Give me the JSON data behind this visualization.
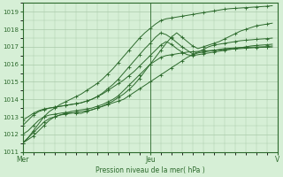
{
  "xlabel": "Pression niveau de la mer( hPa )",
  "bg_color": "#d6efd6",
  "plot_bg_color": "#d6efd6",
  "line_color": "#2d6a2d",
  "grid_color": "#aacaaa",
  "spine_color": "#2d6a2d",
  "xlim": [
    0,
    48
  ],
  "ylim": [
    1011,
    1019.5
  ],
  "yticks": [
    1011,
    1012,
    1013,
    1014,
    1015,
    1016,
    1017,
    1018,
    1019
  ],
  "xtick_labels": [
    "Mer",
    "Jeu",
    "V"
  ],
  "xtick_positions": [
    0,
    24,
    48
  ],
  "vline_x": 24,
  "series": [
    {
      "x": [
        0,
        1,
        2,
        3,
        4,
        5,
        6,
        7,
        8,
        9,
        10,
        11,
        12,
        13,
        14,
        15,
        16,
        17,
        18,
        19,
        20,
        21,
        22,
        23,
        24,
        25,
        26,
        27,
        28,
        29,
        30,
        31,
        32,
        33,
        34,
        35,
        36,
        37,
        38,
        39,
        40,
        41,
        42,
        43,
        44,
        45,
        46,
        47
      ],
      "y": [
        1011.5,
        1011.7,
        1011.9,
        1012.2,
        1012.5,
        1012.8,
        1013.0,
        1013.1,
        1013.2,
        1013.3,
        1013.35,
        1013.4,
        1013.45,
        1013.5,
        1013.6,
        1013.7,
        1013.85,
        1014.0,
        1014.2,
        1014.5,
        1014.8,
        1015.1,
        1015.4,
        1015.7,
        1016.0,
        1016.2,
        1016.4,
        1016.5,
        1016.55,
        1016.6,
        1016.65,
        1016.7,
        1016.72,
        1016.74,
        1016.76,
        1016.78,
        1016.8,
        1016.82,
        1016.84,
        1016.86,
        1016.88,
        1016.9,
        1016.92,
        1016.94,
        1016.96,
        1016.97,
        1016.98,
        1016.99
      ]
    },
    {
      "x": [
        0,
        1,
        2,
        3,
        4,
        5,
        6,
        7,
        8,
        9,
        10,
        11,
        12,
        13,
        14,
        15,
        16,
        17,
        18,
        19,
        20,
        21,
        22,
        23,
        24,
        25,
        26,
        27,
        28,
        29,
        30,
        31,
        32,
        33,
        34,
        35,
        36,
        37,
        38,
        39,
        40,
        41,
        42,
        43,
        44,
        45,
        46,
        47
      ],
      "y": [
        1012.0,
        1012.2,
        1012.5,
        1012.8,
        1013.0,
        1013.1,
        1013.15,
        1013.2,
        1013.25,
        1013.25,
        1013.2,
        1013.2,
        1013.3,
        1013.4,
        1013.5,
        1013.6,
        1013.7,
        1013.8,
        1013.9,
        1014.0,
        1014.2,
        1014.4,
        1014.6,
        1014.8,
        1015.0,
        1015.2,
        1015.4,
        1015.6,
        1015.8,
        1016.0,
        1016.2,
        1016.4,
        1016.55,
        1016.65,
        1016.7,
        1016.75,
        1016.8,
        1016.85,
        1016.9,
        1016.92,
        1016.94,
        1016.96,
        1016.97,
        1016.98,
        1016.99,
        1017.0,
        1017.01,
        1017.05
      ]
    },
    {
      "x": [
        0,
        1,
        2,
        3,
        4,
        5,
        6,
        7,
        8,
        9,
        10,
        11,
        12,
        13,
        14,
        15,
        16,
        17,
        18,
        19,
        20,
        21,
        22,
        23,
        24,
        25,
        26,
        27,
        28,
        29,
        30,
        31,
        32,
        33,
        34,
        35,
        36,
        37,
        38,
        39,
        40,
        41,
        42,
        43,
        44,
        45,
        46,
        47
      ],
      "y": [
        1012.5,
        1012.8,
        1013.1,
        1013.3,
        1013.4,
        1013.5,
        1013.55,
        1013.6,
        1013.65,
        1013.7,
        1013.75,
        1013.8,
        1013.9,
        1014.0,
        1014.15,
        1014.3,
        1014.5,
        1014.7,
        1014.9,
        1015.1,
        1015.35,
        1015.6,
        1015.9,
        1016.2,
        1016.5,
        1016.8,
        1017.1,
        1017.3,
        1017.15,
        1016.9,
        1016.7,
        1016.55,
        1016.5,
        1016.55,
        1016.6,
        1016.65,
        1016.7,
        1016.75,
        1016.8,
        1016.85,
        1016.9,
        1016.95,
        1017.0,
        1017.05,
        1017.08,
        1017.1,
        1017.12,
        1017.15
      ]
    },
    {
      "x": [
        0,
        1,
        2,
        3,
        4,
        5,
        6,
        7,
        8,
        9,
        10,
        11,
        12,
        13,
        14,
        15,
        16,
        17,
        18,
        19,
        20,
        21,
        22,
        23,
        24,
        25,
        26,
        27,
        28,
        29,
        30,
        31,
        32,
        33,
        34,
        35,
        36,
        37,
        38,
        39,
        40,
        41,
        42,
        43,
        44,
        45,
        46,
        47
      ],
      "y": [
        1012.8,
        1013.0,
        1013.2,
        1013.35,
        1013.45,
        1013.5,
        1013.55,
        1013.6,
        1013.65,
        1013.7,
        1013.75,
        1013.8,
        1013.9,
        1014.0,
        1014.15,
        1014.35,
        1014.6,
        1014.85,
        1015.15,
        1015.5,
        1015.85,
        1016.2,
        1016.55,
        1016.9,
        1017.2,
        1017.55,
        1017.8,
        1017.7,
        1017.5,
        1017.25,
        1017.0,
        1016.8,
        1016.6,
        1016.7,
        1016.85,
        1017.0,
        1017.1,
        1017.15,
        1017.2,
        1017.25,
        1017.3,
        1017.35,
        1017.38,
        1017.4,
        1017.43,
        1017.45,
        1017.47,
        1017.5
      ]
    },
    {
      "x": [
        0,
        1,
        2,
        3,
        4,
        5,
        6,
        7,
        8,
        9,
        10,
        11,
        12,
        13,
        14,
        15,
        16,
        17,
        18,
        19,
        20,
        21,
        22,
        23,
        24,
        25,
        26,
        27,
        28,
        29,
        30,
        31,
        32,
        33,
        34,
        35,
        36,
        37,
        38,
        39,
        40,
        41,
        42,
        43,
        44,
        45,
        46,
        47
      ],
      "y": [
        1011.5,
        1011.8,
        1012.1,
        1012.4,
        1012.7,
        1012.9,
        1013.0,
        1013.1,
        1013.15,
        1013.2,
        1013.25,
        1013.3,
        1013.35,
        1013.4,
        1013.5,
        1013.6,
        1013.75,
        1013.9,
        1014.1,
        1014.3,
        1014.55,
        1014.85,
        1015.2,
        1015.6,
        1016.0,
        1016.4,
        1016.8,
        1017.2,
        1017.55,
        1017.8,
        1017.55,
        1017.3,
        1017.05,
        1016.9,
        1017.0,
        1017.1,
        1017.2,
        1017.3,
        1017.45,
        1017.6,
        1017.75,
        1017.9,
        1018.0,
        1018.1,
        1018.2,
        1018.25,
        1018.3,
        1018.35
      ]
    },
    {
      "x": [
        0,
        1,
        2,
        3,
        4,
        5,
        6,
        7,
        8,
        9,
        10,
        11,
        12,
        13,
        14,
        15,
        16,
        17,
        18,
        19,
        20,
        21,
        22,
        23,
        24,
        25,
        26,
        27,
        28,
        29,
        30,
        31,
        32,
        33,
        34,
        35,
        36,
        37,
        38,
        39,
        40,
        41,
        42,
        43,
        44,
        45,
        46,
        47
      ],
      "y": [
        1011.5,
        1011.8,
        1012.2,
        1012.6,
        1013.0,
        1013.3,
        1013.5,
        1013.7,
        1013.85,
        1014.0,
        1014.15,
        1014.3,
        1014.5,
        1014.7,
        1014.9,
        1015.15,
        1015.45,
        1015.75,
        1016.1,
        1016.45,
        1016.8,
        1017.15,
        1017.5,
        1017.8,
        1018.05,
        1018.3,
        1018.5,
        1018.6,
        1018.65,
        1018.7,
        1018.75,
        1018.8,
        1018.85,
        1018.9,
        1018.95,
        1019.0,
        1019.05,
        1019.1,
        1019.15,
        1019.18,
        1019.2,
        1019.22,
        1019.24,
        1019.26,
        1019.28,
        1019.3,
        1019.32,
        1019.35
      ]
    }
  ]
}
